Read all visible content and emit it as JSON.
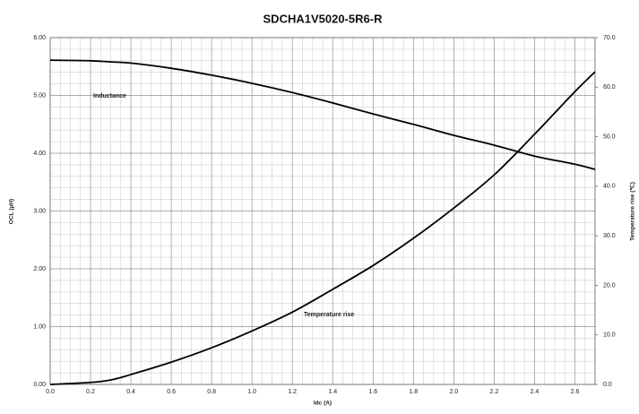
{
  "chart_data": {
    "type": "line",
    "title": "SDCHA1V5020-5R6-R",
    "x_label": "Idc (A)",
    "y_label": "OCL (μH)",
    "y2_label": "Temperature rise (℃)",
    "x": [
      0,
      0.2,
      0.3,
      0.4,
      0.6,
      0.8,
      1.0,
      1.2,
      1.4,
      1.6,
      1.8,
      2.0,
      2.2,
      2.4,
      2.6,
      2.7
    ],
    "series": [
      {
        "name": "Inductance",
        "color": "#000000",
        "values": [
          5.61,
          5.6,
          5.58,
          5.56,
          5.47,
          5.35,
          5.21,
          5.05,
          4.87,
          4.68,
          4.5,
          4.31,
          4.14,
          3.95,
          3.81,
          3.72
        ]
      },
      {
        "name": "Temperature rise",
        "color": "#000000",
        "axis": "y2",
        "values": [
          0,
          0.4,
          0.9,
          2.0,
          4.5,
          7.4,
          10.8,
          14.6,
          19.2,
          24.0,
          29.5,
          35.6,
          42.3,
          50.5,
          59.1,
          63.1
        ]
      }
    ],
    "xlim": [
      0,
      2.7
    ],
    "xticks": [
      {
        "value": 0,
        "label": "0.0"
      },
      0.2,
      0.4,
      0.6,
      0.8,
      {
        "value": 1,
        "label": "1.0"
      },
      1.2,
      1.4,
      1.6,
      1.8,
      {
        "value": 2,
        "label": "2.0"
      },
      2.2,
      2.4,
      2.6
    ],
    "ylim": [
      0,
      6
    ],
    "yticks": [
      {
        "value": 0,
        "label": "0.00"
      },
      {
        "value": 1,
        "label": "1.00"
      },
      {
        "value": 2,
        "label": "2.00"
      },
      {
        "value": 3,
        "label": "3.00"
      },
      {
        "value": 4,
        "label": "4.00"
      },
      {
        "value": 5,
        "label": "5.00"
      },
      {
        "value": 6,
        "label": "6.00"
      }
    ],
    "y2lim": [
      0,
      70
    ],
    "y2ticks": [
      {
        "value": 0,
        "label": "0.0"
      },
      {
        "value": 10,
        "label": "10.0"
      },
      {
        "value": 20,
        "label": "20.0"
      },
      {
        "value": 30,
        "label": "30.0"
      },
      {
        "value": 40,
        "label": "40.0"
      },
      {
        "value": 50,
        "label": "50.0"
      },
      {
        "value": 60,
        "label": "60.0"
      },
      {
        "value": 70,
        "label": "70.0"
      }
    ],
    "x_minor_grid": [
      0,
      0.05,
      0.1,
      0.15,
      0.2,
      0.25,
      0.3,
      0.35,
      0.4,
      0.45,
      0.5,
      0.55,
      0.6,
      0.65,
      0.7,
      0.75,
      0.8,
      0.85,
      0.9,
      0.95,
      1,
      1.05,
      1.1,
      1.15,
      1.2,
      1.25,
      1.3,
      1.35,
      1.4,
      1.45,
      1.5,
      1.55,
      1.6,
      1.65,
      1.7,
      1.75,
      1.8,
      1.85,
      1.9,
      1.95,
      2,
      2.05,
      2.1,
      2.15,
      2.2,
      2.25,
      2.3,
      2.35,
      2.4,
      2.45,
      2.5,
      2.55,
      2.6,
      2.65,
      2.7
    ],
    "y_minor_grid": [
      0,
      0.2,
      0.4,
      0.6,
      0.8,
      1,
      1.2,
      1.4,
      1.6,
      1.8,
      2,
      2.2,
      2.4,
      2.6,
      2.8,
      3,
      3.2,
      3.4,
      3.6,
      3.8,
      4,
      4.2,
      4.4,
      4.6,
      4.8,
      5,
      5.2,
      5.4,
      5.6,
      5.8,
      6
    ],
    "grid": true
  }
}
